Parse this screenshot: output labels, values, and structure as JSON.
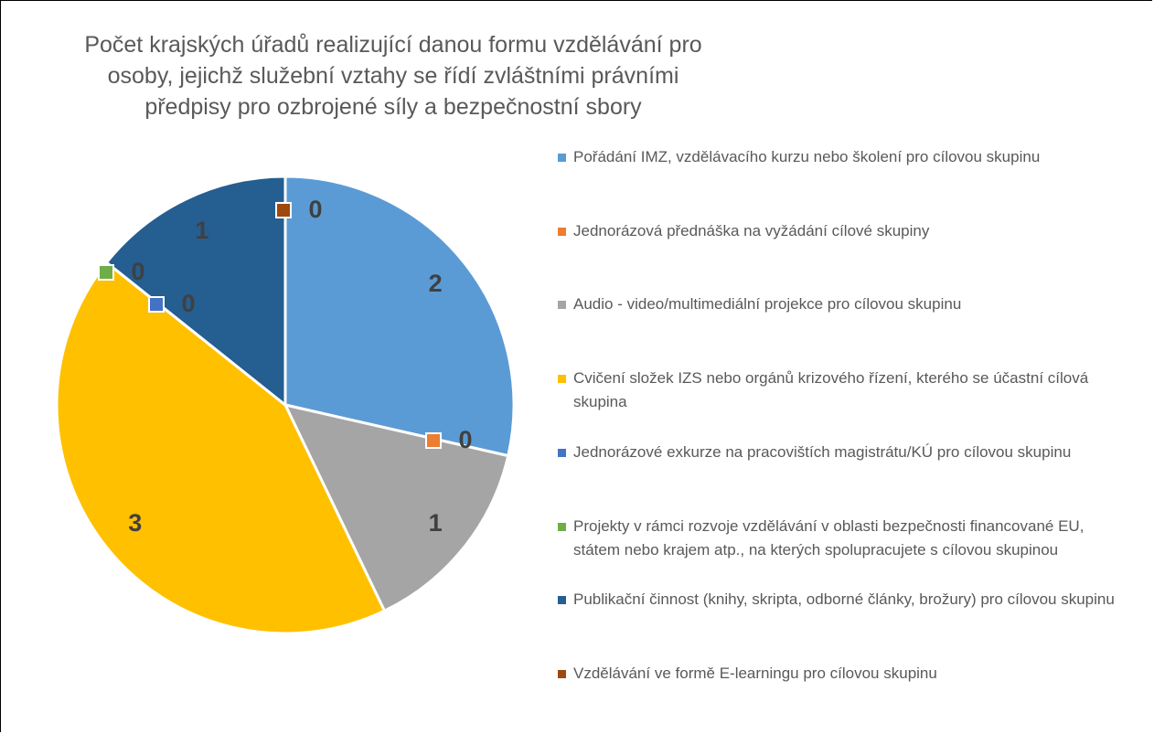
{
  "chart_data": {
    "type": "pie",
    "title": "Počet krajských úřadů realizující danou formu vzdělávání pro osoby, jejichž služební vztahy se řídí zvláštními právními předpisy pro ozbrojené síly a bezpečnostní sbory",
    "categories": [
      "Pořádání IMZ, vzdělávacího kurzu nebo školení pro cílovou skupinu",
      "Jednorázová přednáška na vyžádání cílové skupiny",
      "Audio - video/multimediální projekce pro cílovou skupinu",
      "Cvičení složek IZS nebo orgánů krizového řízení, kterého se účastní cílová skupina",
      "Jednorázové exkurze na pracovištích magistrátu/KÚ pro cílovou skupinu",
      "Projekty v rámci rozvoje vzdělávání v oblasti bezpečnosti financované EU, státem nebo krajem atp., na kterých spolupracujete s cílovou skupinou",
      "Publikační činnost (knihy, skripta, odborné články, brožury) pro cílovou skupinu",
      "Vzdělávání ve formě E-learningu pro cílovou skupinu"
    ],
    "values": [
      2,
      0,
      1,
      3,
      0,
      0,
      1,
      0
    ],
    "colors": [
      "#5b9bd5",
      "#ed7d31",
      "#a5a5a5",
      "#ffc000",
      "#4472c4",
      "#70ad47",
      "#255e91",
      "#9e480e"
    ],
    "legend": "right"
  }
}
